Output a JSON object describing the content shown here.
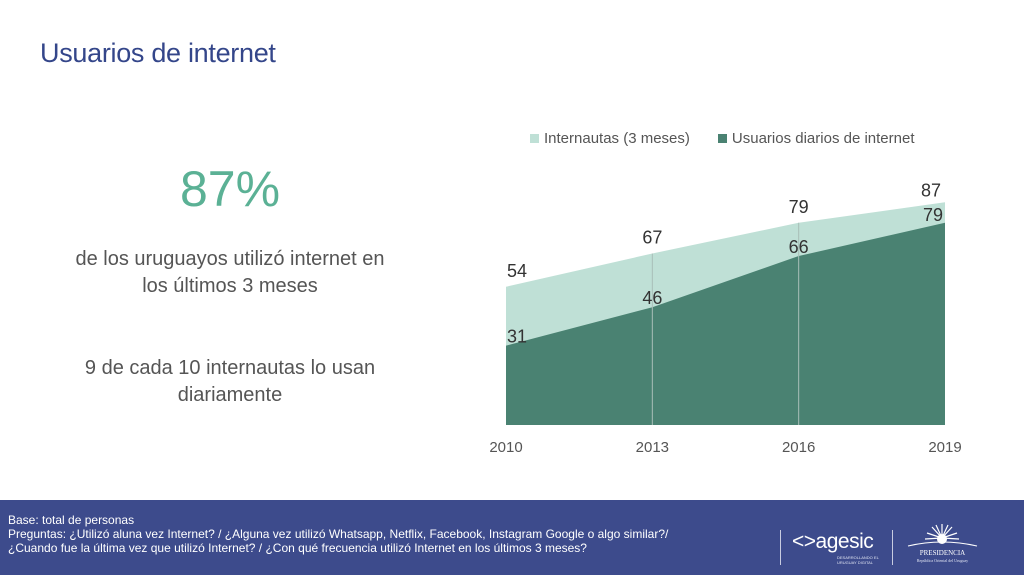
{
  "header": {
    "title": "Usuarios de internet"
  },
  "highlight": {
    "value": "87%",
    "description": "de los uruguayos utilizó internet en los últimos 3 meses",
    "secondary": "9 de cada 10 internautas lo usan diariamente"
  },
  "colors": {
    "title": "#34468a",
    "highlight": "#5bb195",
    "light_series": "#bfe0d6",
    "dark_series": "#4a8272",
    "footer": "#3d4b8c"
  },
  "chart_data": {
    "type": "area",
    "title": "",
    "xlabel": "",
    "ylabel": "",
    "categories": [
      "2010",
      "2013",
      "2016",
      "2019"
    ],
    "series": [
      {
        "name": "Internautas (3 meses)",
        "values": [
          54,
          67,
          79,
          87
        ],
        "color": "#bfe0d6"
      },
      {
        "name": "Usuarios diarios de internet",
        "values": [
          31,
          46,
          66,
          79
        ],
        "color": "#4a8272"
      }
    ],
    "ylim": [
      0,
      100
    ],
    "grid": false,
    "legend_position": "top",
    "data_labels": true
  },
  "footer": {
    "base": "Base: total de personas",
    "questions_line1": "Preguntas: ¿Utilizó aluna vez Internet? / ¿Alguna vez utilizó Whatsapp, Netflix, Facebook, Instagram Google o algo similar?/",
    "questions_line2": "¿Cuando fue la última vez que utilizó Internet? / ¿Con qué frecuencia utilizó Internet en los últimos 3 meses?",
    "logo_agesic": "<>agesic",
    "logo_agesic_sub": "DESARROLLANDO EL URUGUAY DIGITAL",
    "logo_presidencia": "PRESIDENCIA",
    "logo_presidencia_sub": "República Oriental del Uruguay"
  }
}
